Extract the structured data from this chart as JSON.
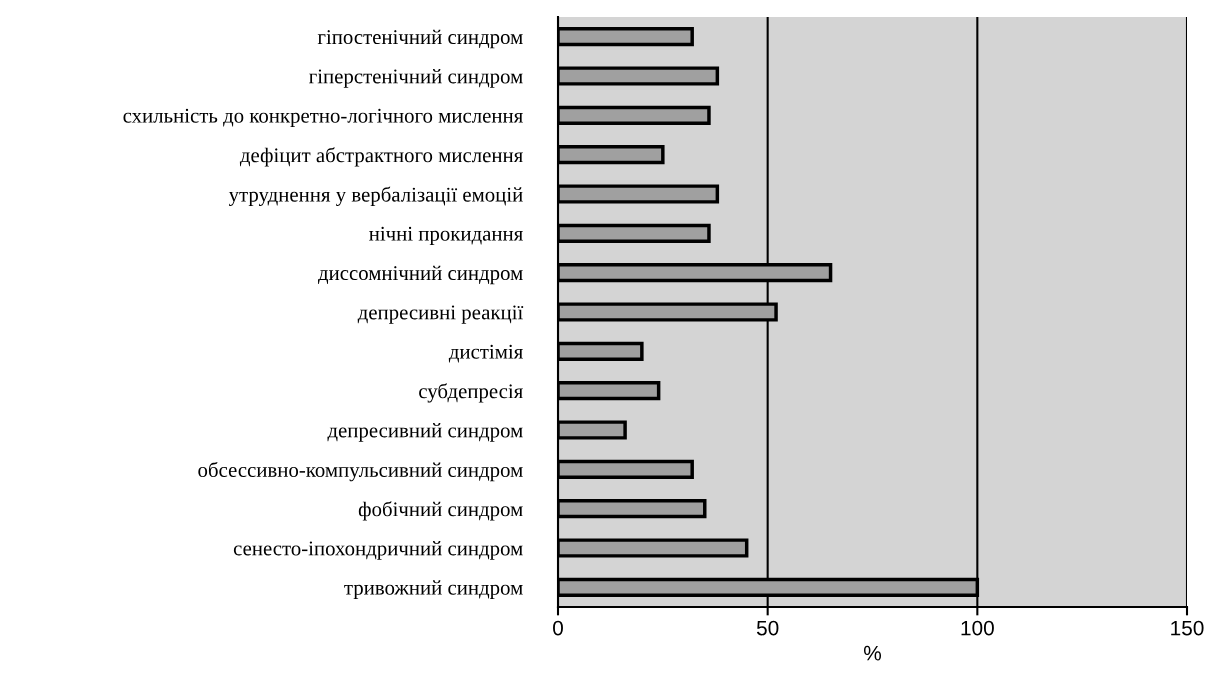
{
  "chart_data": {
    "type": "bar",
    "orientation": "horizontal",
    "xlabel": "%",
    "categories": [
      "гіпостенічний синдром",
      "гіперстенічний синдром",
      "схильність до конкретно-логічного мислення",
      "дефіцит абстрактного мислення",
      "утруднення у вербалізації емоцій",
      "нічні прокидання",
      "диссомнічний синдром",
      "депресивні реакції",
      "дистімія",
      "субдепресія",
      "депресивний синдром",
      "обсессивно-компульсивний синдром",
      "фобічний синдром",
      "сенесто-іпохондричний синдром",
      "тривожний синдром"
    ],
    "values": [
      32,
      38,
      36,
      25,
      38,
      36,
      65,
      52,
      20,
      24,
      16,
      32,
      35,
      45,
      100
    ],
    "color": "#a0a0a0",
    "xlim": [
      0,
      150
    ],
    "xticks": [
      0,
      50,
      100,
      150
    ],
    "grid": "x",
    "legend": false
  }
}
